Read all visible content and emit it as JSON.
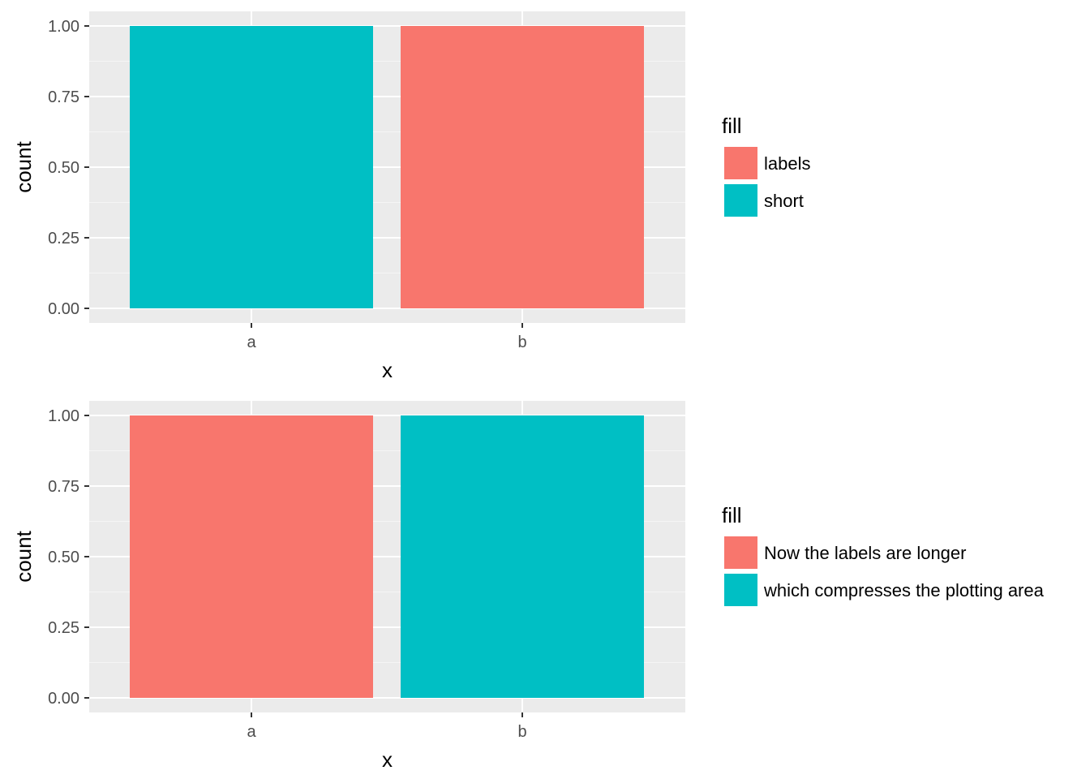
{
  "colors": {
    "panel_background": "#ebebeb",
    "grid_major": "#ffffff",
    "grid_minor": "#f5f5f5",
    "tick": "#333333"
  },
  "chart_data": [
    {
      "type": "bar",
      "title": "",
      "xlabel": "x",
      "ylabel": "count",
      "categories": [
        "a",
        "b"
      ],
      "values": [
        1,
        1
      ],
      "fill_levels": [
        "short",
        "labels"
      ],
      "ylim": [
        0,
        1
      ],
      "yticks": [
        "0.00",
        "0.25",
        "0.50",
        "0.75",
        "1.00"
      ],
      "grid": true,
      "legend": {
        "title": "fill",
        "placement": "right",
        "entries": [
          {
            "label": "labels",
            "color": "#f8766d"
          },
          {
            "label": "short",
            "color": "#00bfc4"
          }
        ]
      }
    },
    {
      "type": "bar",
      "title": "",
      "xlabel": "x",
      "ylabel": "count",
      "categories": [
        "a",
        "b"
      ],
      "values": [
        1,
        1
      ],
      "fill_levels": [
        "Now the labels are longer",
        "which compresses the plotting area"
      ],
      "ylim": [
        0,
        1
      ],
      "yticks": [
        "0.00",
        "0.25",
        "0.50",
        "0.75",
        "1.00"
      ],
      "grid": true,
      "legend": {
        "title": "fill",
        "placement": "right",
        "entries": [
          {
            "label": "Now the labels are longer",
            "color": "#f8766d"
          },
          {
            "label": "which compresses the plotting area",
            "color": "#00bfc4"
          }
        ]
      }
    }
  ]
}
